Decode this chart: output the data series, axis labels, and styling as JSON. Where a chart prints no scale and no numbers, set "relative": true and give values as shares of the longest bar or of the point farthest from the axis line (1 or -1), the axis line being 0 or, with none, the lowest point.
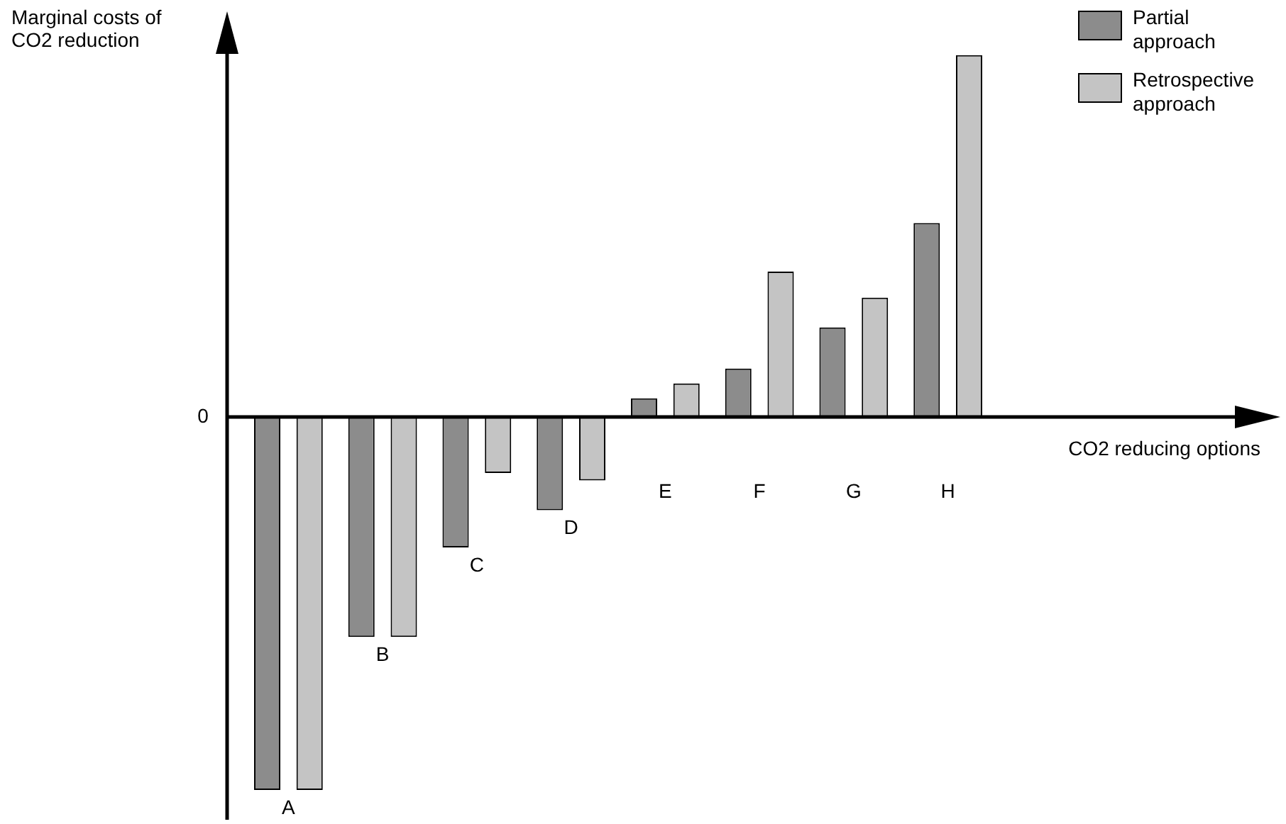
{
  "chart_data": {
    "type": "bar",
    "relative": true,
    "ylabel": "Marginal costs of CO2 reduction",
    "xlabel": "CO2 reducing options",
    "categories": [
      "A",
      "B",
      "C",
      "D",
      "E",
      "F",
      "G",
      "H"
    ],
    "series": [
      {
        "name": "Partial approach",
        "color": "#8c8c8c",
        "values": [
          -1,
          -0.59,
          -0.35,
          -0.25,
          0.05,
          0.13,
          0.24,
          0.52
        ]
      },
      {
        "name": "Retrospective approach",
        "color": "#c4c4c4",
        "values": [
          -1,
          -0.59,
          -0.15,
          -0.17,
          0.09,
          0.39,
          0.32,
          0.97
        ]
      }
    ],
    "legend": "top right",
    "annotations": [
      "0"
    ]
  }
}
